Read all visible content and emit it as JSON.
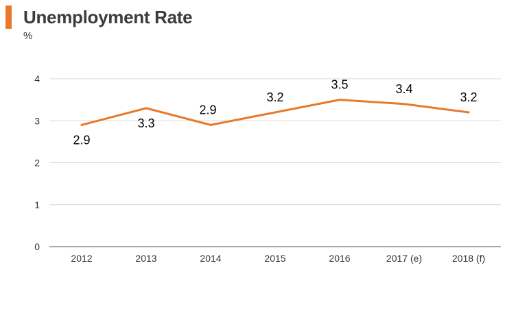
{
  "header": {
    "title": "Unemployment Rate",
    "unit": "%"
  },
  "colors": {
    "accent": "#e8792b",
    "grid": "#d9d9d9",
    "axis": "#555555"
  },
  "chart_data": {
    "type": "line",
    "title": "Unemployment Rate",
    "ylabel": "%",
    "xlabel": "",
    "categories": [
      "2012",
      "2013",
      "2014",
      "2015",
      "2016",
      "2017 (e)",
      "2018 (f)"
    ],
    "series": [
      {
        "values": [
          2.9,
          3.3,
          2.9,
          3.2,
          3.5,
          3.4,
          3.2
        ]
      }
    ],
    "point_labels": [
      "2.9",
      "3.3",
      "2.9",
      "3.2",
      "3.5",
      "3.4",
      "3.2"
    ],
    "ylim": [
      0,
      4
    ],
    "yticks": [
      0,
      1,
      2,
      3,
      4
    ],
    "grid": true,
    "legend": "none"
  }
}
